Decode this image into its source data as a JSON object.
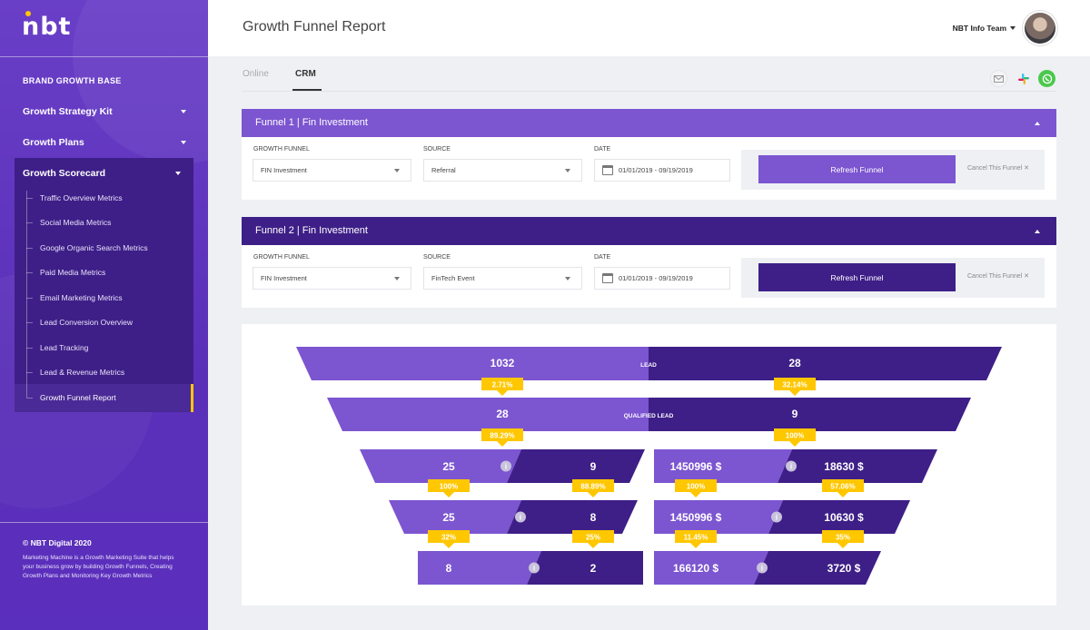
{
  "sidebar": {
    "logo": "nbt",
    "heading": "BRAND GROWTH BASE",
    "items": [
      {
        "label": "Growth Strategy Kit"
      },
      {
        "label": "Growth Plans"
      }
    ],
    "scorecard": {
      "label": "Growth Scorecard",
      "links": [
        "Traffic Overview Metrics",
        "Social Media Metrics",
        "Google Organic Search Metrics",
        "Paid Media Metrics",
        "Email Marketing Metrics",
        "Lead Conversion Overview",
        "Lead Tracking",
        "Lead & Revenue Metrics",
        "Growth Funnel Report"
      ],
      "active_index": 8
    },
    "copyright": "© NBT Digital 2020",
    "description": "Marketing Machine is a Growth Marketing Suite that helps your business grow by building Growth Funnels, Creating Growth Plans and Monitoring Key Growth Metrics"
  },
  "header": {
    "title": "Growth Funnel Report",
    "team": "NBT Info Team"
  },
  "tabs": [
    {
      "label": "Online",
      "active": false
    },
    {
      "label": "CRM",
      "active": true
    }
  ],
  "share_icons": [
    "mail-icon",
    "slack-icon",
    "whatsapp-icon"
  ],
  "colors": {
    "light_purple": "#7c55d0",
    "dark_purple": "#3e1f87",
    "accent_yellow": "#ffc700",
    "whatsapp_green": "#4cc84c"
  },
  "funnels": [
    {
      "title": "Funnel 1 | Fin Investment",
      "growth_funnel_label": "GROWTH FUNNEL",
      "growth_funnel_value": "FIN Investment",
      "source_label": "SOURCE",
      "source_value": "Referral",
      "date_label": "DATE",
      "date_value": "01/01/2019 - 09/19/2019",
      "refresh_label": "Refresh Funnel",
      "cancel_label": "Cancel This Funnel"
    },
    {
      "title": "Funnel 2 | Fin Investment",
      "growth_funnel_label": "GROWTH FUNNEL",
      "growth_funnel_value": "FIN Investment",
      "source_label": "SOURCE",
      "source_value": "FinTech Event",
      "date_label": "DATE",
      "date_value": "01/01/2019 - 09/19/2019",
      "refresh_label": "Refresh Funnel",
      "cancel_label": "Cancel This Funnel"
    }
  ],
  "chart_data": {
    "type": "funnel",
    "stages": [
      {
        "label": "LEAD",
        "funnel1": "1032",
        "funnel2": "28",
        "rate1": "2.71%",
        "rate2": "32.14%"
      },
      {
        "label": "QUALIFIED LEAD",
        "funnel1": "28",
        "funnel2": "9",
        "rate1": "89.29%",
        "rate2": "100%"
      }
    ],
    "split_rows": [
      {
        "left": {
          "a": "25",
          "b": "9",
          "rate_a": "100%",
          "rate_b": "88.89%"
        },
        "right": {
          "a": "1450996 $",
          "b": "18630 $",
          "rate_a": "100%",
          "rate_b": "57.06%"
        }
      },
      {
        "left": {
          "a": "25",
          "b": "8",
          "rate_a": "32%",
          "rate_b": "25%"
        },
        "right": {
          "a": "1450996 $",
          "b": "10630 $",
          "rate_a": "11.45%",
          "rate_b": "35%"
        }
      },
      {
        "left": {
          "a": "8",
          "b": "2"
        },
        "right": {
          "a": "166120 $",
          "b": "3720 $"
        }
      }
    ]
  }
}
